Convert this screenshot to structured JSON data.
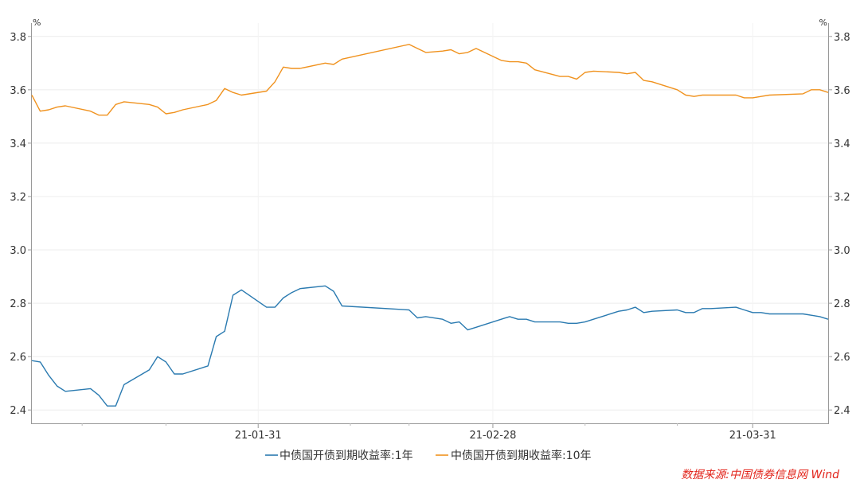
{
  "chart_data": {
    "type": "line",
    "y_unit": "%",
    "ylim": [
      2.35,
      3.85
    ],
    "y_ticks": [
      2.4,
      2.6,
      2.8,
      3.0,
      3.2,
      3.4,
      3.6,
      3.8
    ],
    "x_tick_labels": [
      "21-01-31",
      "21-02-28",
      "21-03-31"
    ],
    "x_ticks": [
      "2021-01-31",
      "2021-02-28",
      "2021-03-31"
    ],
    "xlim": [
      "2021-01-04",
      "2021-04-09"
    ],
    "grid": true,
    "legend_position": "bottom",
    "x": [
      "2021-01-04",
      "2021-01-05",
      "2021-01-06",
      "2021-01-07",
      "2021-01-08",
      "2021-01-11",
      "2021-01-12",
      "2021-01-13",
      "2021-01-14",
      "2021-01-15",
      "2021-01-18",
      "2021-01-19",
      "2021-01-20",
      "2021-01-21",
      "2021-01-22",
      "2021-01-25",
      "2021-01-26",
      "2021-01-27",
      "2021-01-28",
      "2021-01-29",
      "2021-02-01",
      "2021-02-02",
      "2021-02-03",
      "2021-02-04",
      "2021-02-05",
      "2021-02-08",
      "2021-02-09",
      "2021-02-10",
      "2021-02-18",
      "2021-02-19",
      "2021-02-20",
      "2021-02-22",
      "2021-02-23",
      "2021-02-24",
      "2021-02-25",
      "2021-02-26",
      "2021-03-01",
      "2021-03-02",
      "2021-03-03",
      "2021-03-04",
      "2021-03-05",
      "2021-03-08",
      "2021-03-09",
      "2021-03-10",
      "2021-03-11",
      "2021-03-12",
      "2021-03-15",
      "2021-03-16",
      "2021-03-17",
      "2021-03-18",
      "2021-03-19",
      "2021-03-22",
      "2021-03-23",
      "2021-03-24",
      "2021-03-25",
      "2021-03-26",
      "2021-03-29",
      "2021-03-30",
      "2021-03-31",
      "2021-04-01",
      "2021-04-02",
      "2021-04-06",
      "2021-04-07",
      "2021-04-08",
      "2021-04-09"
    ],
    "series": [
      {
        "name": "中债国开债到期收益率:1年",
        "color": "#2a7ab0",
        "values": [
          2.585,
          2.58,
          2.53,
          2.49,
          2.47,
          2.48,
          2.455,
          2.415,
          2.415,
          2.495,
          2.55,
          2.6,
          2.58,
          2.535,
          2.535,
          2.565,
          2.675,
          2.695,
          2.83,
          2.85,
          2.785,
          2.785,
          2.82,
          2.84,
          2.855,
          2.865,
          2.845,
          2.79,
          2.775,
          2.745,
          2.75,
          2.74,
          2.725,
          2.73,
          2.7,
          2.71,
          2.74,
          2.75,
          2.74,
          2.74,
          2.73,
          2.73,
          2.725,
          2.725,
          2.73,
          2.74,
          2.77,
          2.775,
          2.785,
          2.765,
          2.77,
          2.775,
          2.765,
          2.765,
          2.78,
          2.78,
          2.785,
          2.775,
          2.765,
          2.765,
          2.76,
          2.76,
          2.755,
          2.75,
          2.74
        ]
      },
      {
        "name": "中债国开债到期收益率:10年",
        "color": "#f0921e",
        "values": [
          3.58,
          3.52,
          3.525,
          3.535,
          3.54,
          3.52,
          3.505,
          3.505,
          3.545,
          3.555,
          3.545,
          3.535,
          3.51,
          3.515,
          3.525,
          3.545,
          3.56,
          3.605,
          3.59,
          3.58,
          3.595,
          3.63,
          3.685,
          3.68,
          3.68,
          3.7,
          3.695,
          3.715,
          3.77,
          3.755,
          3.74,
          3.745,
          3.75,
          3.735,
          3.74,
          3.755,
          3.71,
          3.705,
          3.705,
          3.7,
          3.675,
          3.65,
          3.65,
          3.64,
          3.665,
          3.67,
          3.665,
          3.66,
          3.665,
          3.635,
          3.63,
          3.6,
          3.58,
          3.575,
          3.58,
          3.58,
          3.58,
          3.57,
          3.57,
          3.575,
          3.58,
          3.585,
          3.6,
          3.6,
          3.59
        ]
      }
    ]
  },
  "source_note": "数据来源:中国债券信息网 Wind"
}
